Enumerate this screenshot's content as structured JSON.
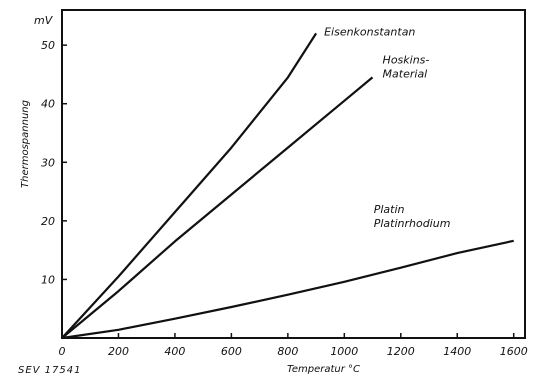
{
  "figure_id": "SEV 17541",
  "chart_data": {
    "type": "line",
    "title": "",
    "xlabel": "Temperatur °C",
    "ylabel": "Thermospannung",
    "y_unit": "mV",
    "xlim": [
      0,
      1640
    ],
    "ylim": [
      0,
      56
    ],
    "x_ticks": [
      0,
      200,
      400,
      600,
      800,
      1000,
      1200,
      1400,
      1600
    ],
    "y_ticks": [
      10,
      20,
      30,
      40,
      50
    ],
    "grid": false,
    "legend": "none",
    "series": [
      {
        "name": "Eisenkonstantan",
        "label_lines": [
          "Eisenkonstantan"
        ],
        "x": [
          0,
          200,
          400,
          600,
          800,
          900
        ],
        "y": [
          0,
          10.5,
          21.5,
          32.5,
          44.5,
          52
        ]
      },
      {
        "name": "Hoskins-Material",
        "label_lines": [
          "Hoskins-",
          "Material"
        ],
        "x": [
          0,
          200,
          400,
          600,
          800,
          1000,
          1100
        ],
        "y": [
          0,
          8,
          16.5,
          24.5,
          32.5,
          40.5,
          44.5
        ]
      },
      {
        "name": "Platin Platinrhodium",
        "label_lines": [
          "Platin",
          "Platinrhodium"
        ],
        "x": [
          0,
          200,
          400,
          600,
          800,
          1000,
          1200,
          1400,
          1600
        ],
        "y": [
          0,
          1.4,
          3.3,
          5.3,
          7.4,
          9.6,
          12,
          14.5,
          16.6
        ]
      }
    ]
  }
}
